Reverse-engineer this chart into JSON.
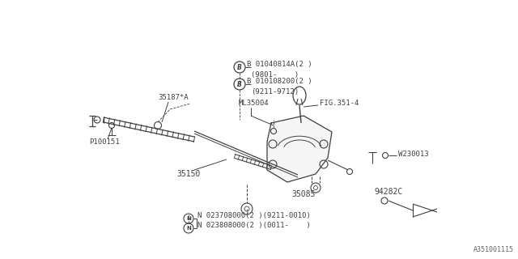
{
  "bg_color": "#ffffff",
  "line_color": "#404040",
  "text_color": "#404040",
  "fig_width": 6.4,
  "fig_height": 3.2,
  "dpi": 100,
  "watermark": "A351001115",
  "labels": {
    "B1_part": "B 01040814A(2 )",
    "B1_date": "(9801-    )",
    "B2_part": "B 010108200(2 )",
    "B2_date": "(9211-9712)",
    "ML35004": "ML35004",
    "FIG351": "FIG.351-4",
    "P100151": "P100151",
    "label35187": "35187*A",
    "label35150": "35150",
    "label35085": "35085",
    "W230013": "W230013",
    "label94282C": "94282C",
    "N1_part": "N 023708000(2 )(9211-0010)",
    "N2_part": "N 023808000(2 )(0011-    )"
  },
  "fontsize_label": 7.0,
  "fontsize_tiny": 6.5
}
